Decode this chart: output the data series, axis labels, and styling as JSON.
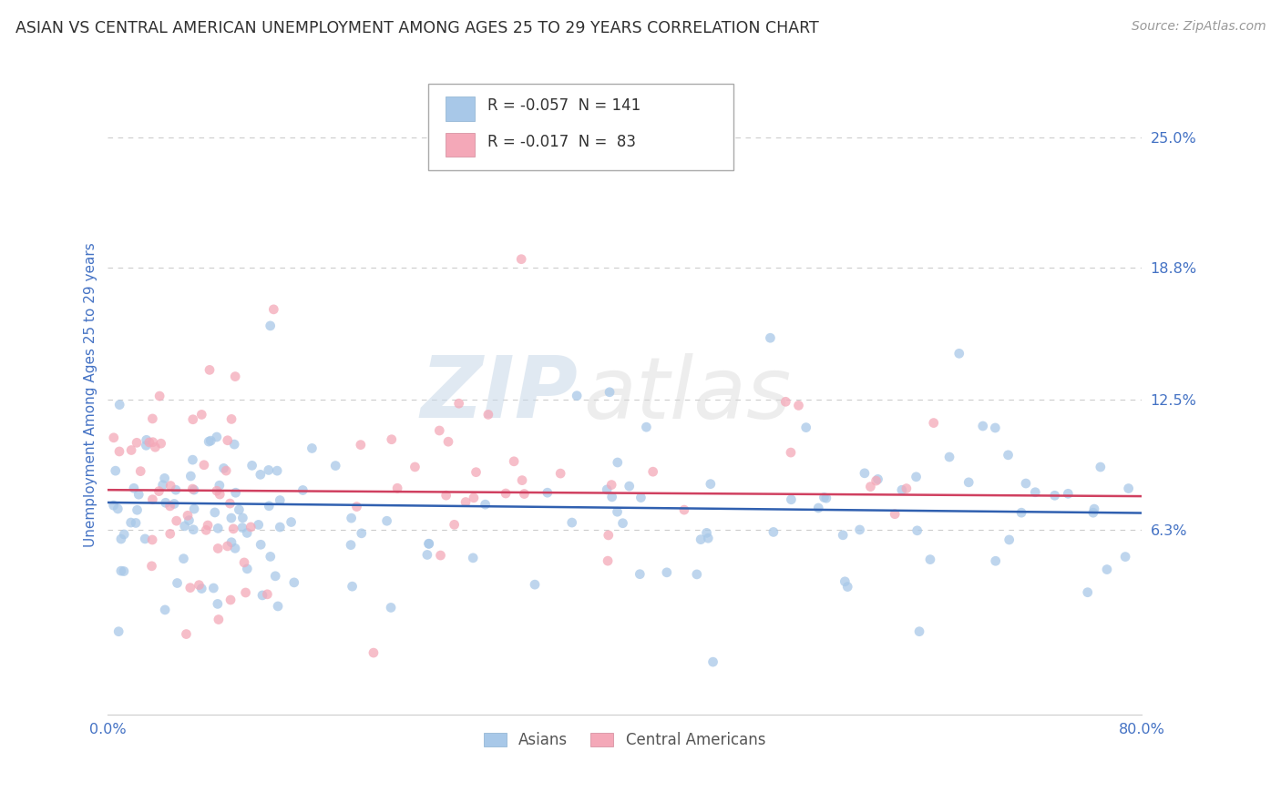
{
  "title": "ASIAN VS CENTRAL AMERICAN UNEMPLOYMENT AMONG AGES 25 TO 29 YEARS CORRELATION CHART",
  "source": "Source: ZipAtlas.com",
  "ylabel": "Unemployment Among Ages 25 to 29 years",
  "xlim": [
    0.0,
    0.8
  ],
  "ylim": [
    -0.025,
    0.28
  ],
  "asian_R": -0.057,
  "asian_N": 141,
  "central_R": -0.017,
  "central_N": 83,
  "asian_color": "#a8c8e8",
  "central_color": "#f4a8b8",
  "asian_line_color": "#3060b0",
  "central_line_color": "#d04060",
  "watermark_zip": "ZIP",
  "watermark_atlas": "atlas",
  "background_color": "#ffffff",
  "grid_color": "#cccccc",
  "title_color": "#303030",
  "axis_label_color": "#4472c4",
  "tick_color": "#4472c4",
  "ytick_positions": [
    0.063,
    0.125,
    0.188,
    0.25
  ],
  "ytick_labels": [
    "6.3%",
    "12.5%",
    "18.8%",
    "25.0%"
  ],
  "xtick_positions": [
    0.0,
    0.8
  ],
  "xtick_labels": [
    "0.0%",
    "80.0%"
  ]
}
